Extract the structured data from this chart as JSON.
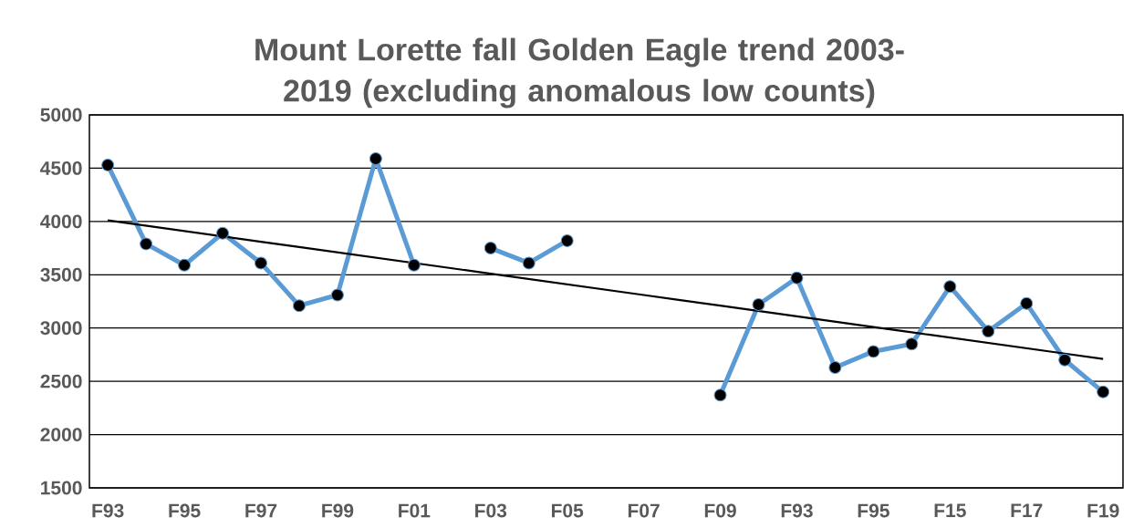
{
  "chart_data": {
    "type": "line",
    "title": "Mount Lorette fall Golden Eagle trend 2003-2019 (excluding anomalous low counts)",
    "categories": [
      "F93",
      null,
      "F95",
      null,
      "F97",
      null,
      "F99",
      null,
      "F01",
      null,
      "F03",
      null,
      "F05",
      null,
      "F07",
      null,
      "F09",
      null,
      "F93",
      null,
      "F95",
      null,
      "F15",
      null,
      "F17",
      null,
      "F19"
    ],
    "series": [
      {
        "color": "#5b9bd5",
        "values": [
          4530,
          3790,
          3590,
          3890,
          3610,
          3210,
          3310,
          4590,
          3590,
          null,
          3750,
          3610,
          3820,
          null,
          null,
          null,
          2370,
          3220,
          3470,
          2630,
          2780,
          2850,
          3390,
          2970,
          3230,
          2700,
          2400
        ]
      },
      {
        "color": "#000000",
        "marker": "none",
        "values": [
          4010,
          3960,
          3910,
          3860,
          3810,
          3760,
          3710,
          3660,
          3610,
          3560,
          3510,
          3460,
          3410,
          3360,
          3310,
          3260,
          3210,
          3160,
          3110,
          3060,
          3010,
          2960,
          2910,
          2860,
          2810,
          2760,
          2710
        ]
      }
    ],
    "ylim": [
      1500,
      5000
    ],
    "yticks": [
      1500,
      2000,
      2500,
      3000,
      3500,
      4000,
      4500,
      5000
    ],
    "grid": "y",
    "marker": "circle",
    "line_style": "solid"
  }
}
